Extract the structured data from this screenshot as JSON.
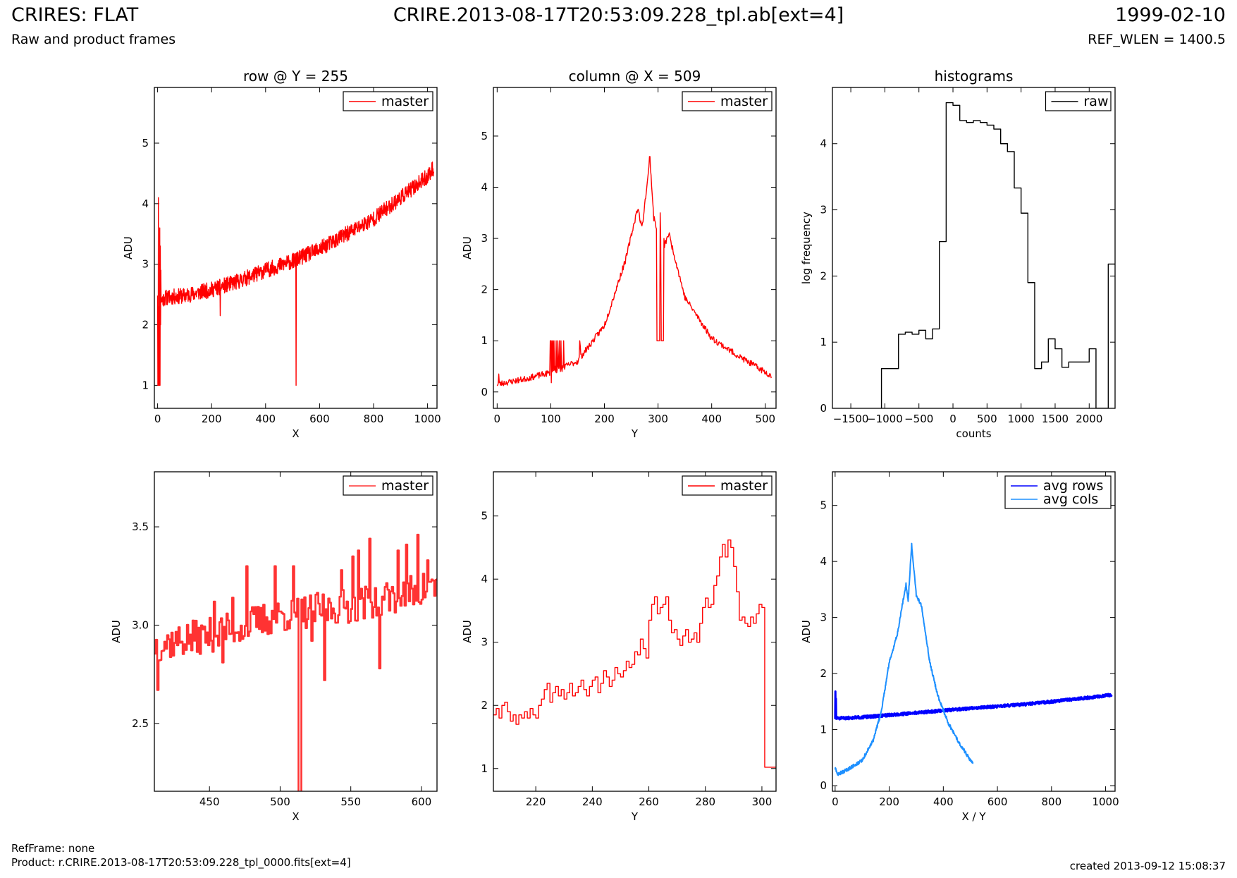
{
  "header": {
    "title": "CRIRES: FLAT",
    "subtitle": "Raw and product frames",
    "file": "CRIRE.2013-08-17T20:53:09.228_tpl.ab[ext=4]",
    "date": "1999-02-10",
    "ref_wlen": "REF_WLEN = 1400.5"
  },
  "footer": {
    "refframe": "RefFrame: none",
    "product": "Product: r.CRIRE.2013-08-17T20:53:09.228_tpl_0000.fits[ext=4]",
    "created": "created 2013-09-12 15:08:37"
  },
  "colors": {
    "master": "#ff0000",
    "master_zoom": "#ff3333",
    "raw": "#000000",
    "avg_rows": "#0000ff",
    "avg_cols": "#1e90ff"
  },
  "chart_data": [
    {
      "id": "row",
      "type": "line",
      "title": "row @ Y = 255",
      "xlabel": "X",
      "ylabel": "ADU",
      "xlim": [
        -12,
        1035
      ],
      "ylim": [
        0.62,
        5.92
      ],
      "xticks": [
        0,
        200,
        400,
        600,
        800,
        1000
      ],
      "yticks": [
        1,
        2,
        3,
        4,
        5
      ],
      "legend": "top-right",
      "series": [
        {
          "name": "master",
          "color": "#ff0000",
          "n": 1024,
          "noise": 0.13,
          "seed": 11,
          "curve_x": [
            0,
            12,
            30,
            100,
            200,
            300,
            400,
            500,
            600,
            700,
            800,
            900,
            1000,
            1023
          ],
          "curve_y": [
            2.55,
            2.4,
            2.45,
            2.48,
            2.58,
            2.72,
            2.9,
            3.05,
            3.25,
            3.5,
            3.75,
            4.1,
            4.45,
            4.6
          ],
          "overrides": [
            {
              "x": 1,
              "y": 1.0
            },
            {
              "x": 2,
              "y": 1.0
            },
            {
              "x": 3,
              "y": 4.1
            },
            {
              "x": 4,
              "y": 1.0
            },
            {
              "x": 5,
              "y": 1.0
            },
            {
              "x": 6,
              "y": 2.3
            },
            {
              "x": 7,
              "y": 1.0
            },
            {
              "x": 8,
              "y": 3.6
            },
            {
              "x": 9,
              "y": 1.0
            },
            {
              "x": 10,
              "y": 3.3
            },
            {
              "x": 11,
              "y": 2.0
            },
            {
              "x": 12,
              "y": 2.9
            },
            {
              "x": 232,
              "y": 2.15
            },
            {
              "x": 513,
              "y": 1.0
            }
          ]
        }
      ]
    },
    {
      "id": "col",
      "type": "line",
      "title": "column @ X = 509",
      "xlabel": "Y",
      "ylabel": "ADU",
      "xlim": [
        -7,
        520
      ],
      "ylim": [
        -0.32,
        5.95
      ],
      "xticks": [
        0,
        100,
        200,
        300,
        400,
        500
      ],
      "yticks": [
        0,
        1,
        2,
        3,
        4,
        5
      ],
      "legend": "top-right",
      "series": [
        {
          "name": "master",
          "color": "#ff0000",
          "n": 512,
          "noise": 0.06,
          "seed": 23,
          "curve_x": [
            0,
            50,
            100,
            150,
            200,
            240,
            262,
            270,
            285,
            292,
            310,
            320,
            350,
            400,
            450,
            511
          ],
          "curve_y": [
            0.15,
            0.25,
            0.38,
            0.6,
            1.3,
            2.6,
            3.6,
            3.2,
            4.55,
            3.4,
            2.8,
            3.1,
            1.85,
            1.05,
            0.7,
            0.32
          ],
          "overrides": [
            {
              "x": 3,
              "y": 0.35
            },
            {
              "x": 99,
              "y": 1.0
            },
            {
              "x": 100,
              "y": 1.0
            },
            {
              "x": 101,
              "y": 0.18
            },
            {
              "x": 102,
              "y": 1.0
            },
            {
              "x": 104,
              "y": 1.0
            },
            {
              "x": 106,
              "y": 1.0
            },
            {
              "x": 108,
              "y": 0.5
            },
            {
              "x": 110,
              "y": 1.0
            },
            {
              "x": 113,
              "y": 1.0
            },
            {
              "x": 116,
              "y": 1.0
            },
            {
              "x": 119,
              "y": 1.0
            },
            {
              "x": 121,
              "y": 0.4
            },
            {
              "x": 124,
              "y": 1.0
            },
            {
              "x": 154,
              "y": 1.0
            },
            {
              "x": 155,
              "y": 0.9
            },
            {
              "x": 281,
              "y": 4.2
            },
            {
              "x": 284,
              "y": 4.6
            },
            {
              "x": 285,
              "y": 4.6
            },
            {
              "x": 298,
              "y": 1.0
            },
            {
              "x": 299,
              "y": 1.0
            },
            {
              "x": 300,
              "y": 1.0
            },
            {
              "x": 301,
              "y": 1.0
            },
            {
              "x": 302,
              "y": 1.0
            },
            {
              "x": 303,
              "y": 1.0
            },
            {
              "x": 304,
              "y": 3.5
            },
            {
              "x": 305,
              "y": 3.0
            },
            {
              "x": 306,
              "y": 1.0
            },
            {
              "x": 307,
              "y": 1.0
            },
            {
              "x": 308,
              "y": 1.0
            },
            {
              "x": 309,
              "y": 1.0
            },
            {
              "x": 310,
              "y": 1.0
            },
            {
              "x": 311,
              "y": 3.0
            }
          ]
        }
      ]
    },
    {
      "id": "hist",
      "type": "line",
      "title": "histograms",
      "xlabel": "counts",
      "ylabel": "log frequency",
      "xlim": [
        -1770,
        2380
      ],
      "ylim": [
        0,
        4.85
      ],
      "xticks": [
        -1500,
        -1000,
        -500,
        0,
        500,
        1000,
        1500,
        2000
      ],
      "xticklabels": [
        "−1500",
        "−1000",
        "−500",
        "0",
        "500",
        "1000",
        "1500",
        "2000"
      ],
      "yticks": [
        0,
        1,
        2,
        3,
        4
      ],
      "legend": "top-right",
      "series": [
        {
          "name": "raw",
          "color": "#000000",
          "step": true,
          "x": [
            -1050,
            -1050,
            -800,
            -700,
            -600,
            -500,
            -400,
            -300,
            -200,
            -100,
            0,
            100,
            200,
            300,
            400,
            500,
            600,
            700,
            800,
            900,
            1000,
            1100,
            1200,
            1300,
            1400,
            1500,
            1600,
            1700,
            1800,
            1900,
            2000,
            2100,
            2200,
            2280,
            2380
          ],
          "y": [
            0,
            0.6,
            1.12,
            1.15,
            1.12,
            1.18,
            1.05,
            1.2,
            2.52,
            4.62,
            4.58,
            4.35,
            4.32,
            4.35,
            4.32,
            4.28,
            4.22,
            4.0,
            3.88,
            3.33,
            2.95,
            1.9,
            0.6,
            0.7,
            1.05,
            0.9,
            0.62,
            0.7,
            0.7,
            0.7,
            0.9,
            0.0,
            0.0,
            2.18,
            2.18
          ]
        }
      ]
    },
    {
      "id": "row_zoom",
      "type": "line",
      "title": "",
      "xlabel": "X",
      "ylabel": "ADU",
      "xlim": [
        411,
        611
      ],
      "ylim": [
        2.155,
        3.78
      ],
      "xticks": [
        450,
        500,
        550,
        600
      ],
      "yticks": [
        2.5,
        3.0,
        3.5
      ],
      "yfmt": 1,
      "legend": "top-right",
      "series": [
        {
          "name": "master",
          "color": "#ff3333",
          "step": true,
          "width": 2.6,
          "n_from": 411,
          "n_to": 611,
          "noise": 0.09,
          "seed": 37,
          "curve_x": [
            411,
            450,
            500,
            550,
            611
          ],
          "curve_y": [
            2.9,
            2.95,
            3.05,
            3.1,
            3.2
          ],
          "overrides": [
            {
              "x": 413,
              "y": 2.67
            },
            {
              "x": 453,
              "y": 3.12
            },
            {
              "x": 459,
              "y": 2.81
            },
            {
              "x": 466,
              "y": 3.14
            },
            {
              "x": 476,
              "y": 3.3
            },
            {
              "x": 496,
              "y": 3.3
            },
            {
              "x": 509,
              "y": 3.3
            },
            {
              "x": 513,
              "y": 2.1
            },
            {
              "x": 514,
              "y": 2.1
            },
            {
              "x": 522,
              "y": 2.92
            },
            {
              "x": 531,
              "y": 2.72
            },
            {
              "x": 543,
              "y": 3.28
            },
            {
              "x": 551,
              "y": 3.35
            },
            {
              "x": 555,
              "y": 3.38
            },
            {
              "x": 563,
              "y": 3.44
            },
            {
              "x": 570,
              "y": 2.78
            },
            {
              "x": 583,
              "y": 3.38
            },
            {
              "x": 589,
              "y": 3.41
            },
            {
              "x": 597,
              "y": 3.46
            },
            {
              "x": 604,
              "y": 3.33
            },
            {
              "x": 610,
              "y": 3.23
            }
          ]
        }
      ]
    },
    {
      "id": "col_zoom",
      "type": "line",
      "title": "",
      "xlabel": "Y",
      "ylabel": "ADU",
      "xlim": [
        205,
        305
      ],
      "ylim": [
        0.64,
        5.7
      ],
      "xticks": [
        220,
        240,
        260,
        280,
        300
      ],
      "yticks": [
        1,
        2,
        3,
        4,
        5
      ],
      "legend": "top-right",
      "series": [
        {
          "name": "master",
          "color": "#ff0000",
          "step": true,
          "x": [
            205,
            206,
            207,
            208,
            209,
            210,
            211,
            212,
            213,
            214,
            215,
            216,
            217,
            218,
            219,
            220,
            221,
            222,
            223,
            224,
            225,
            226,
            227,
            228,
            229,
            230,
            231,
            232,
            233,
            234,
            235,
            236,
            237,
            238,
            239,
            240,
            241,
            242,
            243,
            244,
            245,
            246,
            247,
            248,
            249,
            250,
            251,
            252,
            253,
            254,
            255,
            256,
            257,
            258,
            259,
            260,
            261,
            262,
            263,
            264,
            265,
            266,
            267,
            268,
            269,
            270,
            271,
            272,
            273,
            274,
            275,
            276,
            277,
            278,
            279,
            280,
            281,
            282,
            283,
            284,
            285,
            286,
            287,
            288,
            289,
            290,
            291,
            292,
            293,
            294,
            295,
            296,
            297,
            298,
            299,
            300,
            301,
            302,
            303,
            304,
            305
          ],
          "y": [
            1.85,
            1.95,
            1.8,
            2.0,
            2.05,
            1.9,
            1.75,
            1.85,
            1.7,
            1.85,
            1.8,
            1.9,
            1.8,
            1.95,
            1.85,
            1.8,
            2.0,
            2.1,
            2.25,
            2.35,
            2.05,
            2.2,
            2.3,
            2.15,
            2.25,
            2.1,
            2.2,
            2.35,
            2.15,
            2.2,
            2.3,
            2.4,
            2.25,
            2.15,
            2.3,
            2.4,
            2.45,
            2.2,
            2.35,
            2.55,
            2.45,
            2.3,
            2.4,
            2.6,
            2.5,
            2.45,
            2.55,
            2.7,
            2.6,
            2.65,
            2.85,
            2.8,
            3.05,
            2.9,
            2.75,
            3.35,
            3.6,
            3.72,
            3.45,
            3.55,
            3.6,
            3.72,
            3.35,
            3.15,
            3.2,
            3.05,
            2.95,
            3.1,
            3.2,
            3.0,
            3.05,
            3.15,
            3.0,
            3.3,
            3.55,
            3.7,
            3.55,
            3.6,
            3.9,
            4.05,
            4.35,
            4.55,
            4.35,
            4.62,
            4.5,
            4.2,
            3.8,
            3.35,
            3.4,
            3.3,
            3.25,
            3.4,
            3.3,
            3.45,
            3.6,
            3.55,
            1.02,
            1.02,
            1.02,
            1.02,
            1.02
          ]
        }
      ]
    },
    {
      "id": "avg",
      "type": "line",
      "title": "",
      "xlabel": "X / Y",
      "ylabel": "ADU",
      "xlim": [
        -10,
        1035
      ],
      "ylim": [
        -0.1,
        5.6
      ],
      "xticks": [
        0,
        200,
        400,
        600,
        800,
        1000
      ],
      "yticks": [
        0,
        1,
        2,
        3,
        4,
        5
      ],
      "legend": "top-right",
      "series": [
        {
          "name": "avg rows",
          "color": "#0000ff",
          "n": 1024,
          "noise": 0.025,
          "seed": 51,
          "width": 3,
          "curve_x": [
            0,
            10,
            100,
            300,
            500,
            700,
            900,
            1023
          ],
          "curve_y": [
            1.2,
            1.2,
            1.22,
            1.3,
            1.38,
            1.45,
            1.55,
            1.62
          ],
          "overrides": [
            {
              "x": 1,
              "y": 1.68
            },
            {
              "x": 2,
              "y": 1.3
            },
            {
              "x": 3,
              "y": 1.55
            }
          ]
        },
        {
          "name": "avg cols",
          "color": "#1e90ff",
          "n": 512,
          "noise": 0.03,
          "seed": 63,
          "width": 2,
          "curve_x": [
            0,
            10,
            50,
            100,
            140,
            170,
            200,
            230,
            262,
            270,
            283,
            300,
            320,
            350,
            380,
            420,
            460,
            511
          ],
          "curve_y": [
            0.3,
            0.2,
            0.3,
            0.45,
            0.8,
            1.3,
            2.2,
            2.7,
            3.6,
            3.3,
            4.3,
            3.4,
            3.2,
            2.2,
            1.6,
            1.1,
            0.75,
            0.38
          ]
        }
      ]
    }
  ]
}
